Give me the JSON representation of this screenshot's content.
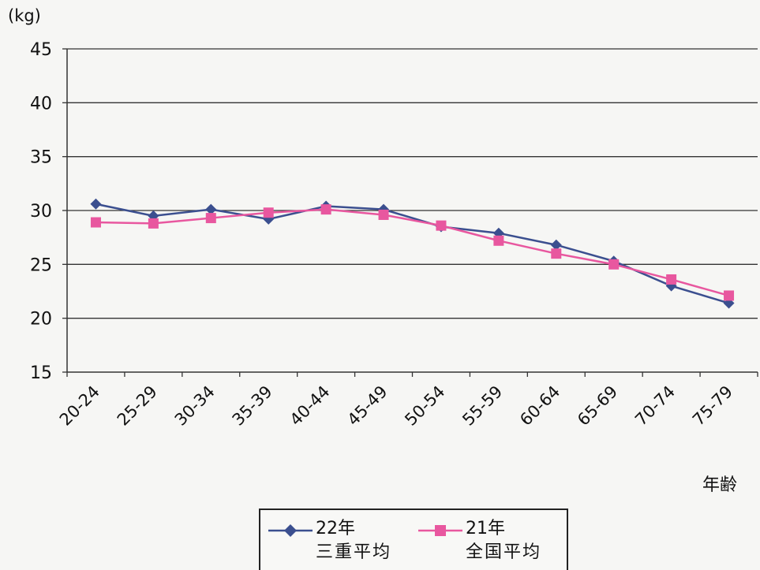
{
  "chart_data": {
    "type": "line",
    "y_unit": "(kg)",
    "xlabel": "年齢",
    "ylabel": "",
    "ylim": [
      15,
      45
    ],
    "yticks": [
      15,
      20,
      25,
      30,
      35,
      40,
      45
    ],
    "grid": "horizontal",
    "categories": [
      "20-24",
      "25-29",
      "30-34",
      "35-39",
      "40-44",
      "45-49",
      "50-54",
      "55-59",
      "60-64",
      "65-69",
      "70-74",
      "75-79"
    ],
    "series": [
      {
        "name": "22年 三重平均",
        "name_line1": "22年",
        "name_line2": "三重平均",
        "marker": "diamond",
        "color": "#3b4f8f",
        "values": [
          30.6,
          29.5,
          30.1,
          29.2,
          30.4,
          30.1,
          28.5,
          27.9,
          26.8,
          25.3,
          23.0,
          21.4
        ]
      },
      {
        "name": "21年 全国平均",
        "name_line1": "21年",
        "name_line2": "全国平均",
        "marker": "square",
        "color": "#e8579f",
        "values": [
          28.9,
          28.8,
          29.3,
          29.8,
          30.1,
          29.6,
          28.6,
          27.2,
          26.0,
          25.0,
          23.6,
          22.1
        ]
      }
    ],
    "legend_position": "bottom-center"
  }
}
